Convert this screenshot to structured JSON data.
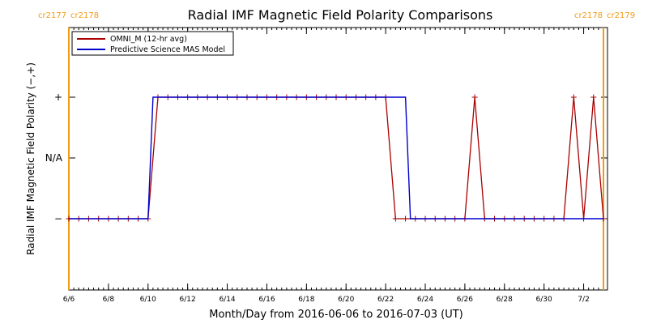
{
  "chart_data": {
    "type": "line",
    "title": "Radial IMF Magnetic Field Polarity Comparisons",
    "xlabel": "Month/Day from 2016-06-06 to 2016-07-03 (UT)",
    "ylabel": "Radial IMF Magnetic Field Polarity (−,+)",
    "xlim": [
      "2016-06-06T00:00",
      "2016-07-03T00:00"
    ],
    "x_ticks": [
      {
        "x": "2016-06-06",
        "label": "6/6"
      },
      {
        "x": "2016-06-08",
        "label": "6/8"
      },
      {
        "x": "2016-06-10",
        "label": "6/10"
      },
      {
        "x": "2016-06-12",
        "label": "6/12"
      },
      {
        "x": "2016-06-14",
        "label": "6/14"
      },
      {
        "x": "2016-06-16",
        "label": "6/16"
      },
      {
        "x": "2016-06-18",
        "label": "6/18"
      },
      {
        "x": "2016-06-20",
        "label": "6/20"
      },
      {
        "x": "2016-06-22",
        "label": "6/22"
      },
      {
        "x": "2016-06-24",
        "label": "6/24"
      },
      {
        "x": "2016-06-26",
        "label": "6/26"
      },
      {
        "x": "2016-06-28",
        "label": "6/28"
      },
      {
        "x": "2016-06-30",
        "label": "6/30"
      },
      {
        "x": "2016-07-02",
        "label": "7/2"
      }
    ],
    "y_categories": [
      "−",
      "N/A",
      "+"
    ],
    "legend_position": "top-left",
    "series": [
      {
        "name": "OMNI_M (12-hr avg)",
        "color": "#aa0000",
        "markers": true,
        "points": [
          [
            "2016-06-06T00:00",
            "−"
          ],
          [
            "2016-06-06T12:00",
            "−"
          ],
          [
            "2016-06-07T00:00",
            "−"
          ],
          [
            "2016-06-07T12:00",
            "−"
          ],
          [
            "2016-06-08T00:00",
            "−"
          ],
          [
            "2016-06-08T12:00",
            "−"
          ],
          [
            "2016-06-09T00:00",
            "−"
          ],
          [
            "2016-06-09T12:00",
            "−"
          ],
          [
            "2016-06-10T00:00",
            "−"
          ],
          [
            "2016-06-10T12:00",
            "+"
          ],
          [
            "2016-06-11T00:00",
            "+"
          ],
          [
            "2016-06-11T12:00",
            "+"
          ],
          [
            "2016-06-12T00:00",
            "+"
          ],
          [
            "2016-06-12T12:00",
            "+"
          ],
          [
            "2016-06-13T00:00",
            "+"
          ],
          [
            "2016-06-13T12:00",
            "+"
          ],
          [
            "2016-06-14T00:00",
            "+"
          ],
          [
            "2016-06-14T12:00",
            "+"
          ],
          [
            "2016-06-15T00:00",
            "+"
          ],
          [
            "2016-06-15T12:00",
            "+"
          ],
          [
            "2016-06-16T00:00",
            "+"
          ],
          [
            "2016-06-16T12:00",
            "+"
          ],
          [
            "2016-06-17T00:00",
            "+"
          ],
          [
            "2016-06-17T12:00",
            "+"
          ],
          [
            "2016-06-18T00:00",
            "+"
          ],
          [
            "2016-06-18T12:00",
            "+"
          ],
          [
            "2016-06-19T00:00",
            "+"
          ],
          [
            "2016-06-19T12:00",
            "+"
          ],
          [
            "2016-06-20T00:00",
            "+"
          ],
          [
            "2016-06-20T12:00",
            "+"
          ],
          [
            "2016-06-21T00:00",
            "+"
          ],
          [
            "2016-06-21T12:00",
            "+"
          ],
          [
            "2016-06-22T00:00",
            "+"
          ],
          [
            "2016-06-22T12:00",
            "−"
          ],
          [
            "2016-06-23T00:00",
            "−"
          ],
          [
            "2016-06-23T12:00",
            "−"
          ],
          [
            "2016-06-24T00:00",
            "−"
          ],
          [
            "2016-06-24T12:00",
            "−"
          ],
          [
            "2016-06-25T00:00",
            "−"
          ],
          [
            "2016-06-25T12:00",
            "−"
          ],
          [
            "2016-06-26T00:00",
            "−"
          ],
          [
            "2016-06-26T12:00",
            "+"
          ],
          [
            "2016-06-27T00:00",
            "−"
          ],
          [
            "2016-06-27T12:00",
            "−"
          ],
          [
            "2016-06-28T00:00",
            "−"
          ],
          [
            "2016-06-28T12:00",
            "−"
          ],
          [
            "2016-06-29T00:00",
            "−"
          ],
          [
            "2016-06-29T12:00",
            "−"
          ],
          [
            "2016-06-30T00:00",
            "−"
          ],
          [
            "2016-06-30T12:00",
            "−"
          ],
          [
            "2016-07-01T00:00",
            "−"
          ],
          [
            "2016-07-01T12:00",
            "+"
          ],
          [
            "2016-07-02T00:00",
            "−"
          ],
          [
            "2016-07-02T12:00",
            "+"
          ],
          [
            "2016-07-03T00:00",
            "−"
          ]
        ]
      },
      {
        "name": "Predictive Science MAS Model",
        "color": "#0000cc",
        "markers": false,
        "points": [
          [
            "2016-06-06T00:00",
            "−"
          ],
          [
            "2016-06-10T00:00",
            "−"
          ],
          [
            "2016-06-10T06:00",
            "+"
          ],
          [
            "2016-06-23T00:00",
            "+"
          ],
          [
            "2016-06-23T06:00",
            "−"
          ],
          [
            "2016-07-03T00:00",
            "−"
          ]
        ]
      }
    ],
    "carrington_markers": [
      {
        "x": "2016-06-06T00:00",
        "left_label": "cr2177",
        "right_label": "cr2178"
      },
      {
        "x": "2016-07-03T00:00",
        "left_label": "cr2178",
        "right_label": "cr2179"
      }
    ],
    "marker_color": "#f29a14"
  }
}
